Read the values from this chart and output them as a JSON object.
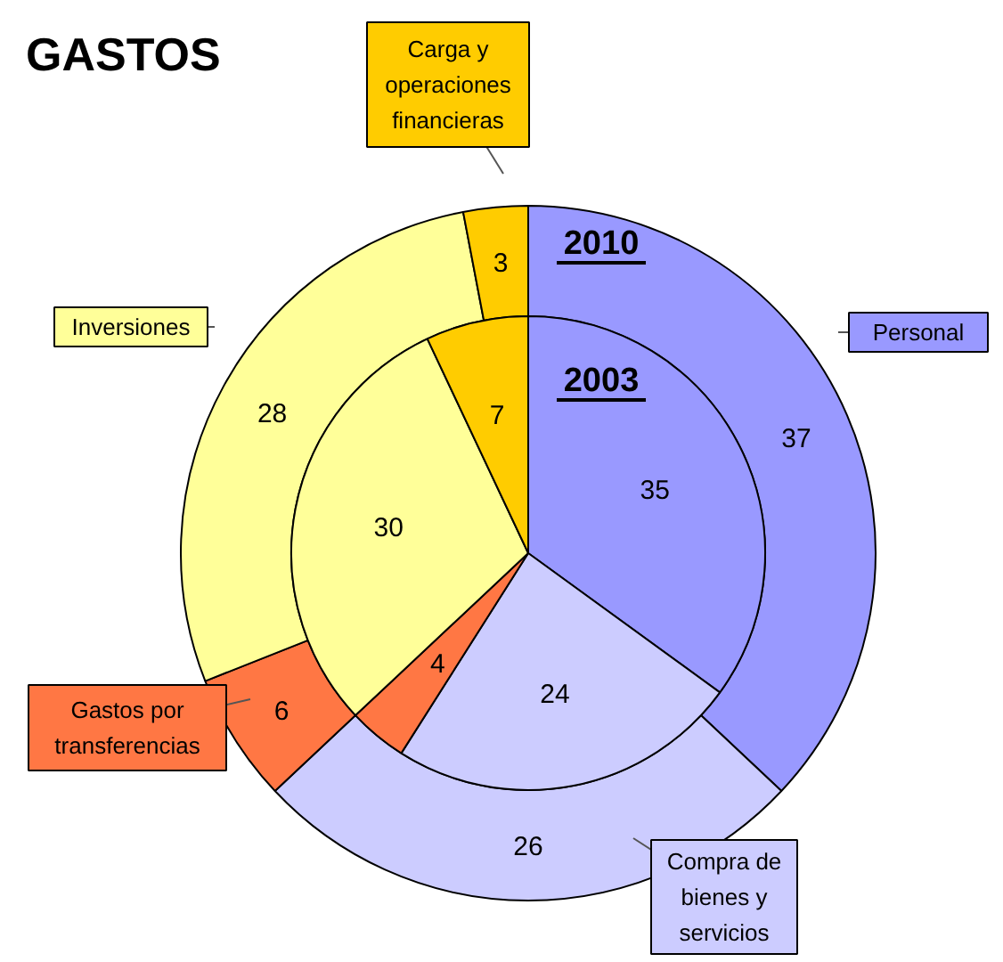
{
  "chart_data": {
    "type": "donut",
    "title": "GASTOS",
    "categories": [
      "Personal",
      "Compra de bienes y servicios",
      "Gastos por transferencias",
      "Inversiones",
      "Carga y operaciones financieras"
    ],
    "colors": [
      "#9999ff",
      "#ccccff",
      "#ff7744",
      "#ffff99",
      "#ffcc00"
    ],
    "series": [
      {
        "name": "2010",
        "values": [
          37,
          26,
          6,
          28,
          3
        ]
      },
      {
        "name": "2003",
        "values": [
          35,
          24,
          4,
          30,
          7
        ]
      }
    ],
    "data_labels": true
  }
}
